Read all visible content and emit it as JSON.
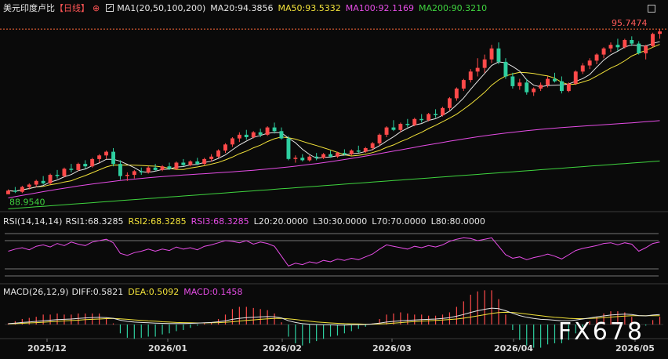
{
  "header": {
    "title": "美元印度卢比",
    "period": "【日线】",
    "period_icon": "circle-plus-icon",
    "ma_label": "MA1(20,50,100,200)",
    "ma20": "MA20:94.3856",
    "ma50": "MA50:93.5332",
    "ma100": "MA100:92.1169",
    "ma200": "MA200:90.3210",
    "colors": {
      "title": "#e6e6e6",
      "period": "#ff5555",
      "ma20": "#e6e6e6",
      "ma50": "#f2e23a",
      "ma100": "#e64de6",
      "ma200": "#3fd43f"
    }
  },
  "rsi_header": {
    "label": "RSI(14,14,14)",
    "rsi1": "RSI1:68.3285",
    "rsi2": "RSI2:68.3285",
    "rsi3": "RSI3:68.3285",
    "l20": "L20:20.0000",
    "l30": "L30:30.0000",
    "l70": "L70:70.0000",
    "l80": "L80:80.0000"
  },
  "macd_header": {
    "label": "MACD(26,12,9)",
    "diff": "DIFF:0.5821",
    "dea": "DEA:0.5092",
    "macd": "MACD:0.1458"
  },
  "watermark": "FX678",
  "chart_data": {
    "type": "candlestick",
    "x_ticks": [
      "2025/12",
      "2026/01",
      "2026/02",
      "2026/03",
      "2026/04",
      "2026/05"
    ],
    "high_label": "95.7474",
    "low_label": "88.9540",
    "high_value": 95.7474,
    "low_value": 88.954,
    "ylim": [
      88.3,
      96.3
    ],
    "colors": {
      "up": "#ff4a4a",
      "down": "#2ecfa0"
    },
    "ohlc": [
      [
        88.95,
        89.15,
        88.95,
        89.1
      ],
      [
        89.1,
        89.25,
        89.0,
        89.05
      ],
      [
        89.05,
        89.3,
        89.0,
        89.25
      ],
      [
        89.25,
        89.4,
        89.15,
        89.35
      ],
      [
        89.35,
        89.55,
        89.25,
        89.5
      ],
      [
        89.5,
        89.7,
        89.35,
        89.4
      ],
      [
        89.4,
        89.8,
        89.35,
        89.75
      ],
      [
        89.75,
        89.95,
        89.6,
        89.7
      ],
      [
        89.7,
        90.05,
        89.65,
        90.0
      ],
      [
        90.0,
        90.2,
        89.85,
        89.95
      ],
      [
        89.95,
        90.25,
        89.9,
        90.2
      ],
      [
        90.2,
        90.35,
        90.0,
        90.1
      ],
      [
        90.1,
        90.45,
        90.05,
        90.4
      ],
      [
        90.4,
        90.6,
        90.25,
        90.55
      ],
      [
        90.55,
        90.75,
        90.4,
        90.7
      ],
      [
        90.7,
        90.85,
        90.1,
        90.2
      ],
      [
        90.2,
        90.35,
        89.55,
        89.7
      ],
      [
        89.7,
        89.85,
        89.5,
        89.75
      ],
      [
        89.75,
        89.95,
        89.6,
        89.9
      ],
      [
        89.9,
        90.05,
        89.75,
        89.85
      ],
      [
        89.85,
        90.1,
        89.8,
        90.05
      ],
      [
        90.05,
        90.2,
        89.9,
        89.95
      ],
      [
        89.95,
        90.15,
        89.9,
        90.1
      ],
      [
        90.1,
        90.25,
        89.95,
        90.0
      ],
      [
        90.0,
        90.3,
        89.95,
        90.25
      ],
      [
        90.25,
        90.4,
        90.1,
        90.15
      ],
      [
        90.15,
        90.35,
        90.1,
        90.3
      ],
      [
        90.3,
        90.45,
        90.15,
        90.2
      ],
      [
        90.2,
        90.45,
        90.15,
        90.4
      ],
      [
        90.4,
        90.6,
        90.3,
        90.5
      ],
      [
        90.5,
        90.8,
        90.45,
        90.75
      ],
      [
        90.75,
        91.05,
        90.65,
        91.0
      ],
      [
        91.0,
        91.3,
        90.9,
        91.25
      ],
      [
        91.25,
        91.5,
        91.1,
        91.4
      ],
      [
        91.4,
        91.6,
        91.2,
        91.3
      ],
      [
        91.3,
        91.55,
        91.25,
        91.5
      ],
      [
        91.5,
        91.65,
        91.3,
        91.4
      ],
      [
        91.4,
        91.75,
        91.35,
        91.7
      ],
      [
        91.7,
        91.9,
        91.45,
        91.55
      ],
      [
        91.55,
        91.7,
        91.2,
        91.25
      ],
      [
        91.25,
        91.35,
        90.35,
        90.4
      ],
      [
        90.4,
        90.55,
        90.25,
        90.45
      ],
      [
        90.45,
        90.6,
        90.3,
        90.35
      ],
      [
        90.35,
        90.55,
        90.3,
        90.5
      ],
      [
        90.5,
        90.65,
        90.35,
        90.45
      ],
      [
        90.45,
        90.65,
        90.4,
        90.6
      ],
      [
        90.6,
        90.75,
        90.45,
        90.5
      ],
      [
        90.5,
        90.7,
        90.45,
        90.65
      ],
      [
        90.65,
        90.8,
        90.55,
        90.6
      ],
      [
        90.6,
        90.8,
        90.55,
        90.75
      ],
      [
        90.75,
        90.95,
        90.65,
        90.7
      ],
      [
        90.7,
        90.9,
        90.65,
        90.85
      ],
      [
        90.85,
        91.1,
        90.75,
        91.05
      ],
      [
        91.05,
        91.45,
        90.95,
        91.4
      ],
      [
        91.4,
        91.75,
        91.3,
        91.7
      ],
      [
        91.7,
        92.0,
        91.55,
        91.6
      ],
      [
        91.6,
        91.9,
        91.5,
        91.85
      ],
      [
        91.85,
        92.05,
        91.7,
        91.8
      ],
      [
        91.8,
        92.1,
        91.75,
        92.05
      ],
      [
        92.05,
        92.25,
        91.9,
        92.0
      ],
      [
        92.0,
        92.3,
        91.95,
        92.25
      ],
      [
        92.25,
        92.45,
        92.1,
        92.2
      ],
      [
        92.2,
        92.55,
        92.15,
        92.5
      ],
      [
        92.5,
        92.95,
        92.4,
        92.9
      ],
      [
        92.9,
        93.35,
        92.8,
        93.3
      ],
      [
        93.3,
        93.7,
        93.2,
        93.65
      ],
      [
        93.65,
        94.1,
        93.55,
        94.0
      ],
      [
        94.0,
        94.55,
        93.8,
        94.15
      ],
      [
        94.15,
        94.7,
        93.95,
        94.5
      ],
      [
        94.5,
        95.1,
        94.35,
        94.95
      ],
      [
        94.95,
        95.2,
        94.3,
        94.4
      ],
      [
        94.4,
        94.55,
        93.7,
        93.8
      ],
      [
        93.8,
        93.95,
        93.3,
        93.4
      ],
      [
        93.4,
        93.7,
        93.25,
        93.55
      ],
      [
        93.55,
        93.7,
        93.05,
        93.15
      ],
      [
        93.15,
        93.35,
        93.0,
        93.3
      ],
      [
        93.3,
        93.55,
        93.2,
        93.45
      ],
      [
        93.45,
        93.8,
        93.35,
        93.7
      ],
      [
        93.7,
        93.95,
        93.55,
        93.6
      ],
      [
        93.6,
        93.8,
        93.1,
        93.2
      ],
      [
        93.2,
        93.55,
        93.15,
        93.5
      ],
      [
        93.5,
        94.05,
        93.45,
        94.0
      ],
      [
        94.0,
        94.35,
        93.9,
        94.25
      ],
      [
        94.25,
        94.55,
        94.1,
        94.45
      ],
      [
        94.45,
        94.75,
        94.3,
        94.7
      ],
      [
        94.7,
        95.0,
        94.55,
        94.95
      ],
      [
        94.95,
        95.2,
        94.8,
        95.1
      ],
      [
        95.1,
        95.35,
        94.85,
        95.0
      ],
      [
        95.0,
        95.35,
        94.95,
        95.3
      ],
      [
        95.3,
        95.45,
        95.05,
        95.15
      ],
      [
        95.15,
        95.25,
        94.7,
        94.75
      ],
      [
        94.75,
        95.1,
        94.5,
        95.05
      ],
      [
        95.05,
        95.6,
        95.0,
        95.55
      ],
      [
        95.55,
        95.75,
        95.35,
        95.65
      ]
    ],
    "rsi": [
      55,
      58,
      60,
      57,
      62,
      64,
      61,
      66,
      63,
      68,
      65,
      63,
      68,
      70,
      72,
      67,
      52,
      49,
      53,
      55,
      58,
      55,
      58,
      56,
      61,
      58,
      60,
      57,
      62,
      64,
      67,
      70,
      69,
      67,
      70,
      65,
      68,
      66,
      62,
      48,
      34,
      38,
      36,
      40,
      38,
      42,
      40,
      44,
      42,
      45,
      43,
      47,
      51,
      58,
      64,
      62,
      60,
      58,
      62,
      60,
      63,
      61,
      64,
      69,
      72,
      74,
      73,
      70,
      72,
      74,
      62,
      50,
      45,
      47,
      43,
      46,
      48,
      51,
      48,
      44,
      50,
      56,
      59,
      61,
      63,
      66,
      67,
      64,
      67,
      65,
      55,
      60,
      66,
      68
    ],
    "macd_diff": [
      0.05,
      0.08,
      0.12,
      0.15,
      0.18,
      0.22,
      0.25,
      0.28,
      0.3,
      0.32,
      0.35,
      0.38,
      0.4,
      0.42,
      0.4,
      0.36,
      0.25,
      0.18,
      0.14,
      0.12,
      0.1,
      0.08,
      0.07,
      0.06,
      0.06,
      0.06,
      0.07,
      0.08,
      0.1,
      0.12,
      0.16,
      0.22,
      0.3,
      0.36,
      0.4,
      0.42,
      0.44,
      0.46,
      0.45,
      0.38,
      0.22,
      0.12,
      0.05,
      0.02,
      0.0,
      -0.01,
      -0.02,
      -0.03,
      -0.03,
      -0.02,
      -0.01,
      0.0,
      0.03,
      0.08,
      0.14,
      0.18,
      0.22,
      0.24,
      0.26,
      0.28,
      0.3,
      0.32,
      0.35,
      0.4,
      0.48,
      0.58,
      0.7,
      0.8,
      0.88,
      0.95,
      0.92,
      0.8,
      0.65,
      0.52,
      0.42,
      0.35,
      0.3,
      0.28,
      0.25,
      0.22,
      0.22,
      0.26,
      0.32,
      0.38,
      0.44,
      0.5,
      0.55,
      0.58,
      0.6,
      0.58,
      0.52,
      0.5,
      0.55,
      0.58
    ],
    "macd_dea": [
      0.04,
      0.05,
      0.07,
      0.09,
      0.11,
      0.13,
      0.16,
      0.18,
      0.21,
      0.23,
      0.25,
      0.28,
      0.3,
      0.32,
      0.34,
      0.35,
      0.33,
      0.3,
      0.27,
      0.24,
      0.21,
      0.19,
      0.16,
      0.14,
      0.12,
      0.11,
      0.1,
      0.09,
      0.09,
      0.1,
      0.11,
      0.13,
      0.16,
      0.2,
      0.24,
      0.27,
      0.3,
      0.33,
      0.35,
      0.36,
      0.33,
      0.29,
      0.24,
      0.19,
      0.15,
      0.12,
      0.09,
      0.07,
      0.05,
      0.04,
      0.03,
      0.02,
      0.02,
      0.03,
      0.05,
      0.08,
      0.11,
      0.14,
      0.17,
      0.19,
      0.22,
      0.24,
      0.26,
      0.29,
      0.32,
      0.37,
      0.43,
      0.5,
      0.57,
      0.64,
      0.69,
      0.71,
      0.7,
      0.66,
      0.61,
      0.56,
      0.51,
      0.46,
      0.42,
      0.39,
      0.36,
      0.34,
      0.34,
      0.35,
      0.37,
      0.4,
      0.43,
      0.46,
      0.49,
      0.51,
      0.51,
      0.51,
      0.51,
      0.51
    ]
  }
}
